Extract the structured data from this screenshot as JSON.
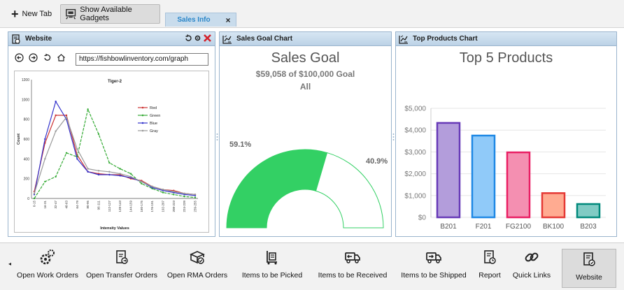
{
  "toolbar": {
    "new_tab": "New Tab",
    "show_gadgets": "Show Available Gadgets",
    "active_tab": "Sales Info",
    "tab_close": "×"
  },
  "website_panel": {
    "title": "Website",
    "url": "https://fishbowlinventory.com/graph"
  },
  "graph_image": {
    "chart_data": {
      "type": "line",
      "title": "Tiger-2",
      "xlabel": "Intensity Values",
      "ylabel": "Count",
      "ylim": [
        0,
        1200
      ],
      "yticks": [
        0,
        200,
        400,
        600,
        800,
        1000,
        1200
      ],
      "categories": [
        "0-15",
        "16-31",
        "32-47",
        "48-63",
        "64-79",
        "80-95",
        "96-111",
        "112-127",
        "128-143",
        "144-159",
        "160-175",
        "176-191",
        "192-207",
        "208-223",
        "224-239",
        "239-255"
      ],
      "series": [
        {
          "name": "Red",
          "color": "#cc3333",
          "values": [
            70,
            560,
            840,
            840,
            440,
            270,
            250,
            240,
            240,
            200,
            180,
            120,
            90,
            80,
            50,
            40
          ]
        },
        {
          "name": "Green",
          "color": "#33aa33",
          "values": [
            0,
            170,
            220,
            460,
            420,
            900,
            650,
            360,
            300,
            250,
            150,
            100,
            60,
            40,
            20,
            10
          ]
        },
        {
          "name": "Blue",
          "color": "#3333cc",
          "values": [
            40,
            600,
            980,
            800,
            400,
            270,
            240,
            240,
            230,
            210,
            170,
            110,
            80,
            60,
            40,
            30
          ]
        },
        {
          "name": "Gray",
          "color": "#999999",
          "values": [
            50,
            400,
            680,
            820,
            500,
            300,
            280,
            270,
            250,
            220,
            170,
            120,
            90,
            70,
            50,
            40
          ]
        }
      ],
      "legend_position": "right"
    }
  },
  "goal_panel": {
    "title": "Sales Goal Chart",
    "heading": "Sales Goal",
    "subtitle": "$59,058 of $100,000 Goal",
    "scope": "All",
    "chart_data": {
      "type": "pie",
      "values": [
        59.1,
        40.9
      ],
      "labels": [
        "59.1%",
        "40.9%"
      ],
      "colors": [
        "#33d064",
        "#ffffff"
      ]
    }
  },
  "products_panel": {
    "title": "Top Products Chart",
    "heading": "Top 5 Products",
    "chart_data": {
      "type": "bar",
      "categories": [
        "B201",
        "F201",
        "FG2100",
        "BK100",
        "B203"
      ],
      "values": [
        4330,
        3750,
        2980,
        1110,
        610
      ],
      "colors": [
        "#b39ddb",
        "#90caf9",
        "#f48fb1",
        "#ffab91",
        "#80cbc4"
      ],
      "borders": [
        "#673ab7",
        "#1e88e5",
        "#e91e63",
        "#e53935",
        "#00897b"
      ],
      "ylim": [
        0,
        5000
      ],
      "yticks": [
        "$0",
        "$1,000",
        "$2,000",
        "$3,000",
        "$4,000",
        "$5,000"
      ],
      "grid": true
    }
  },
  "bottom_bar": {
    "items": [
      {
        "label": "Open Work Orders",
        "icon": "gears-icon"
      },
      {
        "label": "Open Transfer Orders",
        "icon": "transfer-doc-icon"
      },
      {
        "label": "Open RMA Orders",
        "icon": "rma-box-icon"
      },
      {
        "label": "Items to be Picked",
        "icon": "pick-cart-icon"
      },
      {
        "label": "Items to be Received",
        "icon": "receive-truck-icon"
      },
      {
        "label": "Items to be Shipped",
        "icon": "ship-truck-icon"
      },
      {
        "label": "Report",
        "icon": "report-icon"
      },
      {
        "label": "Quick Links",
        "icon": "link-icon"
      },
      {
        "label": "Website",
        "icon": "website-icon"
      }
    ]
  }
}
